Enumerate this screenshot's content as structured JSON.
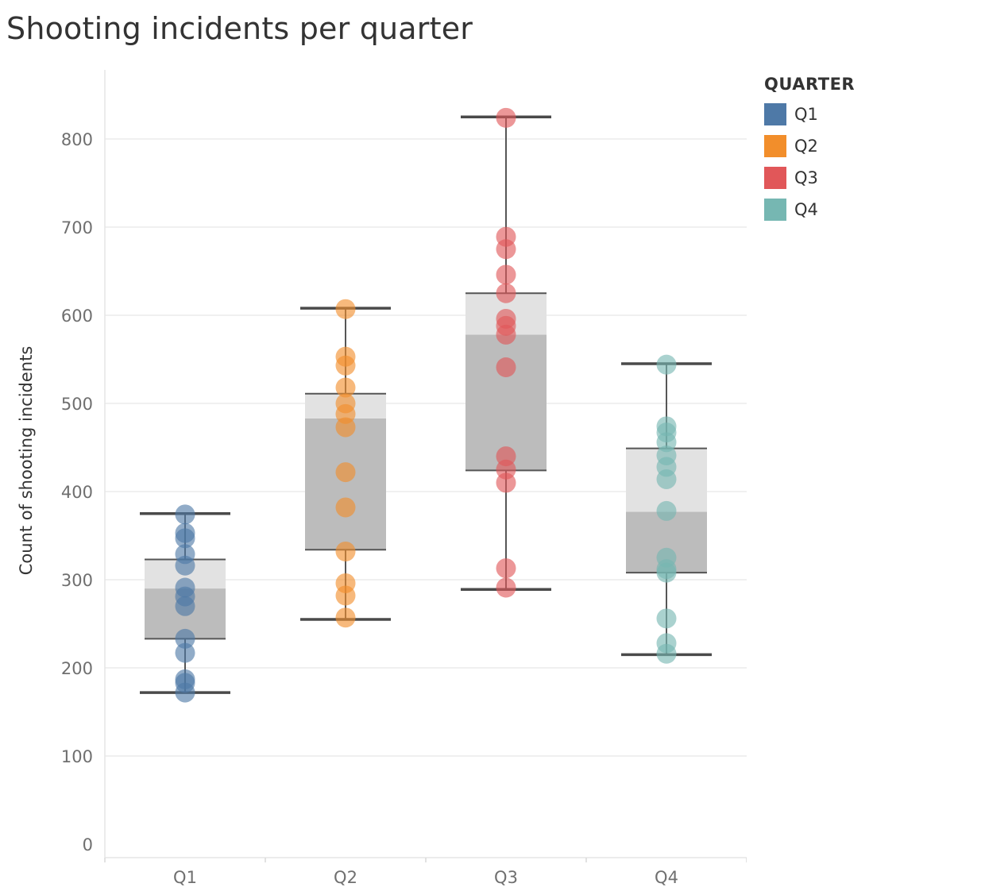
{
  "title": "Shooting incidents per quarter",
  "legend": {
    "title": "QUARTER",
    "items": [
      {
        "label": "Q1",
        "color": "#4e79a7"
      },
      {
        "label": "Q2",
        "color": "#f28e2b"
      },
      {
        "label": "Q3",
        "color": "#e15759"
      },
      {
        "label": "Q4",
        "color": "#76b7b2"
      }
    ]
  },
  "chart_data": {
    "type": "box",
    "title": "Shooting incidents per quarter",
    "xlabel": "",
    "ylabel": "Count of shooting incidents",
    "ylim": [
      0,
      900
    ],
    "yticks": [
      0,
      100,
      200,
      300,
      400,
      500,
      600,
      700,
      800
    ],
    "grid": true,
    "legend_position": "top-right",
    "categories": [
      "Q1",
      "Q2",
      "Q3",
      "Q4"
    ],
    "series": [
      {
        "name": "Q1",
        "color": "#4e79a7",
        "box": {
          "min": 172,
          "q1": 233,
          "median": 290,
          "q3": 323,
          "max": 375
        },
        "points": [
          374,
          353,
          347,
          329,
          316,
          291,
          281,
          270,
          233,
          217,
          187,
          183,
          172
        ]
      },
      {
        "name": "Q2",
        "color": "#f28e2b",
        "box": {
          "min": 255,
          "q1": 334,
          "median": 483,
          "q3": 511,
          "max": 608
        },
        "points": [
          607,
          553,
          543,
          518,
          500,
          488,
          473,
          422,
          382,
          332,
          296,
          282,
          257
        ]
      },
      {
        "name": "Q3",
        "color": "#e15759",
        "box": {
          "min": 289,
          "q1": 424,
          "median": 578,
          "q3": 625,
          "max": 825
        },
        "points": [
          824,
          689,
          675,
          646,
          625,
          596,
          588,
          578,
          541,
          440,
          425,
          410,
          313,
          291
        ]
      },
      {
        "name": "Q4",
        "color": "#76b7b2",
        "box": {
          "min": 215,
          "q1": 308,
          "median": 377,
          "q3": 449,
          "max": 545
        },
        "points": [
          544,
          474,
          467,
          456,
          441,
          428,
          414,
          378,
          325,
          312,
          308,
          256,
          228,
          216
        ]
      }
    ]
  }
}
